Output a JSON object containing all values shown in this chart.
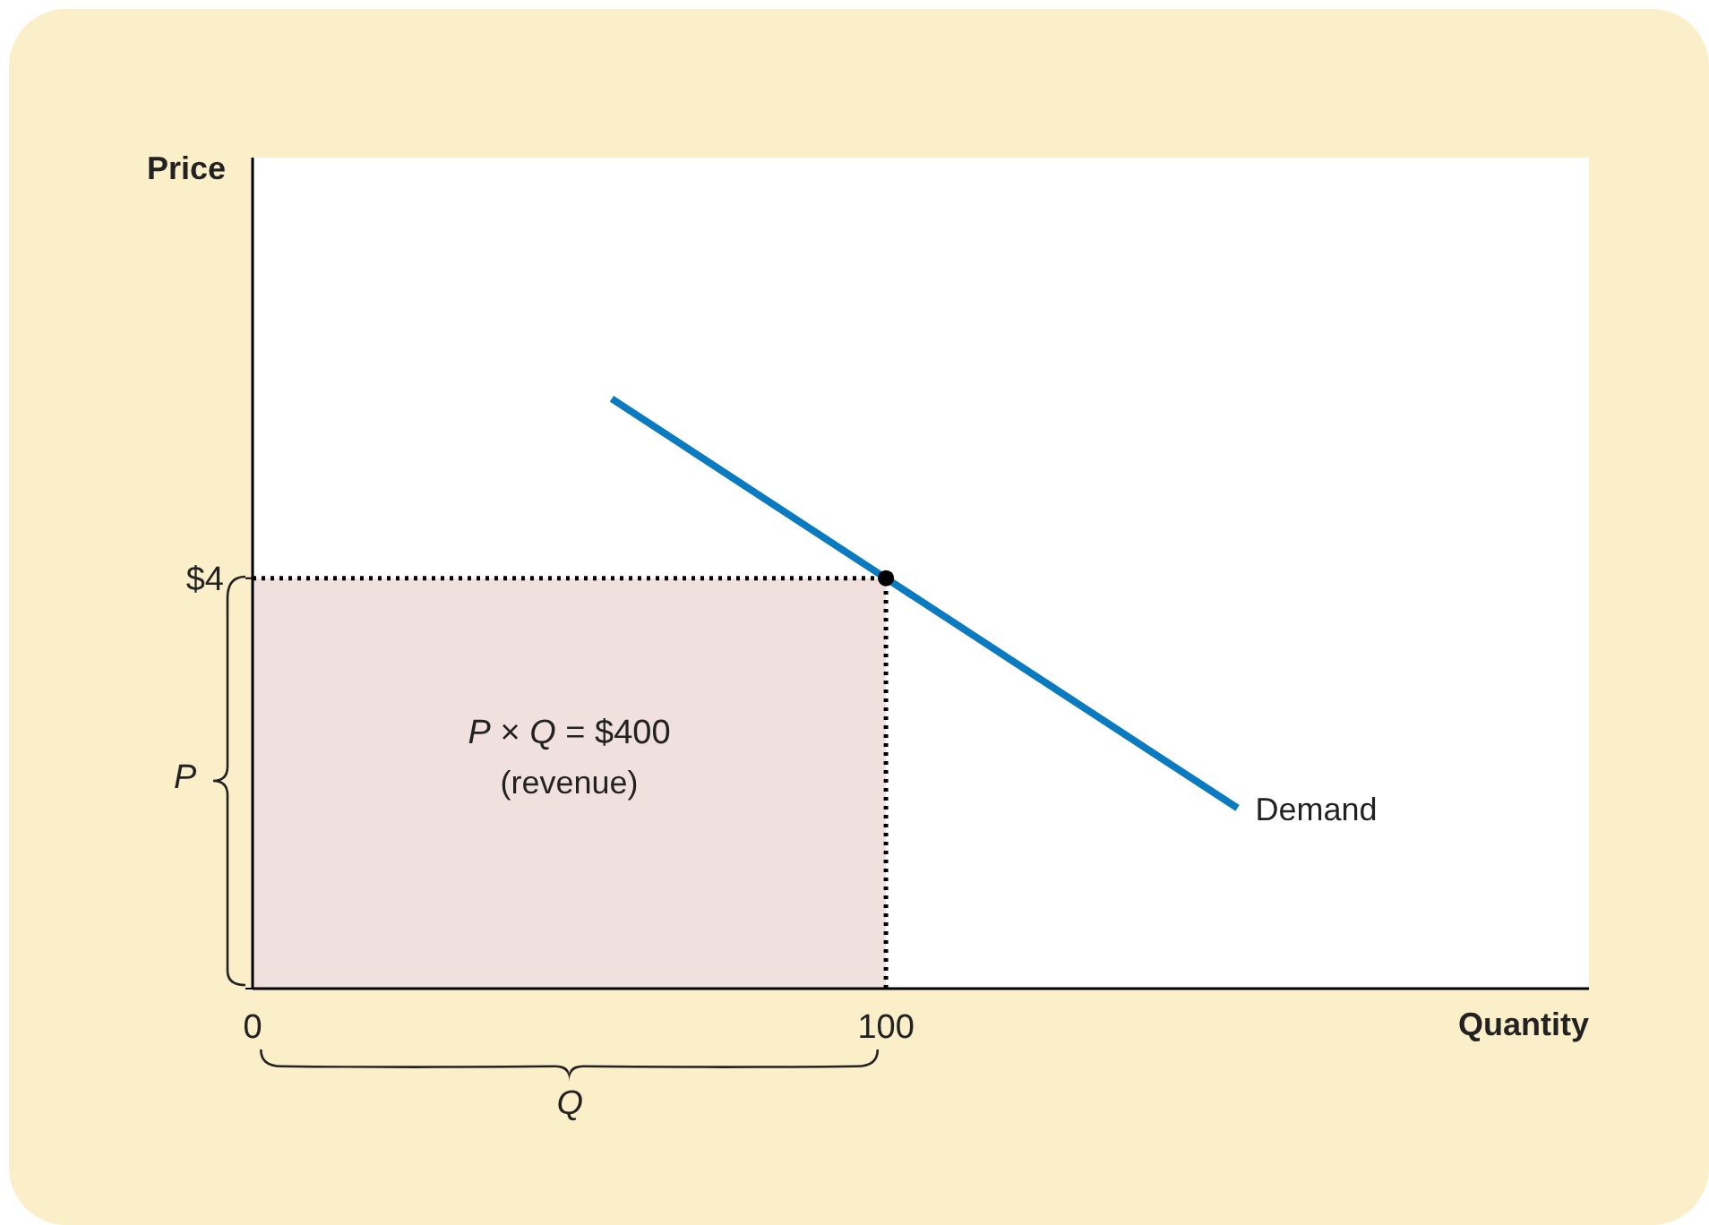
{
  "chart_data": {
    "type": "line",
    "xlabel": "Quantity",
    "ylabel": "Price",
    "xlim": [
      0,
      211
    ],
    "ylim": [
      0,
      8.1
    ],
    "xticks": [
      0,
      100
    ],
    "yticks": [
      {
        "value": 0,
        "label": null
      },
      {
        "value": 4,
        "label": "$4"
      }
    ],
    "series": [
      {
        "type": "area",
        "color": "#f0e1df",
        "x": [
          0,
          100
        ],
        "values": [
          4,
          4
        ],
        "line_style": "dotted"
      },
      {
        "name": "Demand",
        "color": "#0a7bc1",
        "x": [
          56.7,
          100,
          155.5
        ],
        "values": [
          5.75,
          4,
          1.76
        ],
        "marker": "none"
      },
      {
        "type": "scatter",
        "color": "#000000",
        "x": [
          100
        ],
        "values": [
          4
        ],
        "marker": "circle"
      }
    ],
    "ref_lines": [
      {
        "axis": "x",
        "value": 100,
        "color": "#000000",
        "line_style": "dotted"
      }
    ],
    "annotations": [
      "P × Q = $400",
      "(revenue)",
      "P",
      "Q"
    ]
  }
}
